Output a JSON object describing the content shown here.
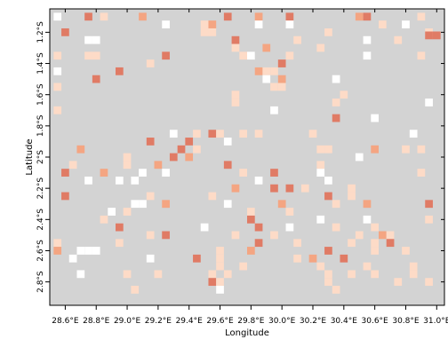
{
  "map": {
    "xlabel": "Longitude",
    "ylabel": "Latitude",
    "x_ticks": [
      "28.6°E",
      "28.8°E",
      "29.0°E",
      "29.2°E",
      "29.4°E",
      "29.6°E",
      "29.8°E",
      "30.0°E",
      "30.2°E",
      "30.4°E",
      "30.6°E",
      "30.8°E",
      "31.0°E"
    ],
    "y_ticks": [
      "1.2°S",
      "1.4°S",
      "1.6°S",
      "1.8°S",
      "2°S",
      "2.2°S",
      "2.4°S",
      "2.6°S",
      "2.8°S"
    ],
    "x_tick_values": [
      28.6,
      28.8,
      29.0,
      29.2,
      29.4,
      29.6,
      29.8,
      30.0,
      30.2,
      30.4,
      30.6,
      30.8,
      31.0
    ],
    "y_tick_values": [
      1.2,
      1.4,
      1.6,
      1.8,
      2.0,
      2.2,
      2.4,
      2.6,
      2.8
    ],
    "colors": {
      "background": "#d3d3d3",
      "no_data": "#ffffff",
      "low": "#fddbc7",
      "mid": "#f4a582",
      "high": "#e07b65"
    }
  },
  "chart_data": {
    "type": "heatmap",
    "xlabel": "Longitude",
    "ylabel": "Latitude",
    "xlim": [
      28.5,
      31.05
    ],
    "ylim": [
      1.05,
      2.95
    ],
    "y_direction": "south-increasing-downward",
    "cell_size_deg": 0.05,
    "cells": [
      {
        "lon": 28.75,
        "lat": 1.1,
        "class": "high"
      },
      {
        "lon": 28.55,
        "lat": 1.1,
        "class": "no_data"
      },
      {
        "lon": 28.85,
        "lat": 1.1,
        "class": "low"
      },
      {
        "lon": 29.1,
        "lat": 1.1,
        "class": "mid"
      },
      {
        "lon": 29.65,
        "lat": 1.1,
        "class": "high"
      },
      {
        "lon": 29.85,
        "lat": 1.1,
        "class": "mid"
      },
      {
        "lon": 30.05,
        "lat": 1.1,
        "class": "high"
      },
      {
        "lon": 30.5,
        "lat": 1.1,
        "class": "mid"
      },
      {
        "lon": 30.55,
        "lat": 1.1,
        "class": "high"
      },
      {
        "lon": 30.9,
        "lat": 1.1,
        "class": "low"
      },
      {
        "lon": 29.25,
        "lat": 1.15,
        "class": "no_data"
      },
      {
        "lon": 29.5,
        "lat": 1.15,
        "class": "low"
      },
      {
        "lon": 29.55,
        "lat": 1.15,
        "class": "mid"
      },
      {
        "lon": 29.85,
        "lat": 1.15,
        "class": "no_data"
      },
      {
        "lon": 30.05,
        "lat": 1.15,
        "class": "no_data"
      },
      {
        "lon": 30.65,
        "lat": 1.15,
        "class": "low"
      },
      {
        "lon": 30.8,
        "lat": 1.15,
        "class": "no_data"
      },
      {
        "lon": 28.6,
        "lat": 1.2,
        "class": "high"
      },
      {
        "lon": 29.5,
        "lat": 1.2,
        "class": "low"
      },
      {
        "lon": 29.55,
        "lat": 1.2,
        "class": "low"
      },
      {
        "lon": 30.3,
        "lat": 1.2,
        "class": "low"
      },
      {
        "lon": 30.95,
        "lat": 1.2,
        "class": "low"
      },
      {
        "lon": 30.95,
        "lat": 1.22,
        "class": "high"
      },
      {
        "lon": 31.0,
        "lat": 1.22,
        "class": "high"
      },
      {
        "lon": 28.75,
        "lat": 1.25,
        "class": "no_data"
      },
      {
        "lon": 28.8,
        "lat": 1.25,
        "class": "no_data"
      },
      {
        "lon": 29.7,
        "lat": 1.25,
        "class": "high"
      },
      {
        "lon": 30.1,
        "lat": 1.25,
        "class": "low"
      },
      {
        "lon": 30.55,
        "lat": 1.25,
        "class": "no_data"
      },
      {
        "lon": 30.75,
        "lat": 1.25,
        "class": "low"
      },
      {
        "lon": 29.7,
        "lat": 1.3,
        "class": "low"
      },
      {
        "lon": 29.9,
        "lat": 1.3,
        "class": "mid"
      },
      {
        "lon": 30.25,
        "lat": 1.3,
        "class": "low"
      },
      {
        "lon": 28.55,
        "lat": 1.35,
        "class": "low"
      },
      {
        "lon": 28.75,
        "lat": 1.35,
        "class": "low"
      },
      {
        "lon": 28.8,
        "lat": 1.35,
        "class": "low"
      },
      {
        "lon": 29.25,
        "lat": 1.35,
        "class": "high"
      },
      {
        "lon": 29.75,
        "lat": 1.35,
        "class": "low"
      },
      {
        "lon": 29.8,
        "lat": 1.35,
        "class": "no_data"
      },
      {
        "lon": 30.05,
        "lat": 1.35,
        "class": "low"
      },
      {
        "lon": 30.55,
        "lat": 1.35,
        "class": "no_data"
      },
      {
        "lon": 30.9,
        "lat": 1.35,
        "class": "low"
      },
      {
        "lon": 29.15,
        "lat": 1.4,
        "class": "low"
      },
      {
        "lon": 30.0,
        "lat": 1.4,
        "class": "high"
      },
      {
        "lon": 28.95,
        "lat": 1.45,
        "class": "high"
      },
      {
        "lon": 29.85,
        "lat": 1.45,
        "class": "mid"
      },
      {
        "lon": 29.9,
        "lat": 1.45,
        "class": "low"
      },
      {
        "lon": 29.95,
        "lat": 1.45,
        "class": "low"
      },
      {
        "lon": 28.55,
        "lat": 1.45,
        "class": "no_data"
      },
      {
        "lon": 28.8,
        "lat": 1.5,
        "class": "high"
      },
      {
        "lon": 29.9,
        "lat": 1.5,
        "class": "no_data"
      },
      {
        "lon": 30.0,
        "lat": 1.5,
        "class": "mid"
      },
      {
        "lon": 30.35,
        "lat": 1.5,
        "class": "no_data"
      },
      {
        "lon": 28.55,
        "lat": 1.55,
        "class": "low"
      },
      {
        "lon": 29.95,
        "lat": 1.55,
        "class": "low"
      },
      {
        "lon": 30.0,
        "lat": 1.55,
        "class": "low"
      },
      {
        "lon": 29.7,
        "lat": 1.6,
        "class": "low"
      },
      {
        "lon": 30.4,
        "lat": 1.6,
        "class": "low"
      },
      {
        "lon": 29.7,
        "lat": 1.65,
        "class": "low"
      },
      {
        "lon": 30.35,
        "lat": 1.65,
        "class": "low"
      },
      {
        "lon": 30.95,
        "lat": 1.65,
        "class": "no_data"
      },
      {
        "lon": 28.55,
        "lat": 1.7,
        "class": "low"
      },
      {
        "lon": 29.95,
        "lat": 1.7,
        "class": "no_data"
      },
      {
        "lon": 30.35,
        "lat": 1.75,
        "class": "high"
      },
      {
        "lon": 30.6,
        "lat": 1.75,
        "class": "no_data"
      },
      {
        "lon": 29.3,
        "lat": 1.85,
        "class": "no_data"
      },
      {
        "lon": 29.45,
        "lat": 1.85,
        "class": "low"
      },
      {
        "lon": 29.55,
        "lat": 1.85,
        "class": "high"
      },
      {
        "lon": 29.6,
        "lat": 1.85,
        "class": "low"
      },
      {
        "lon": 29.75,
        "lat": 1.85,
        "class": "low"
      },
      {
        "lon": 29.85,
        "lat": 1.85,
        "class": "low"
      },
      {
        "lon": 30.2,
        "lat": 1.85,
        "class": "low"
      },
      {
        "lon": 30.85,
        "lat": 1.85,
        "class": "no_data"
      },
      {
        "lon": 29.15,
        "lat": 1.9,
        "class": "high"
      },
      {
        "lon": 29.4,
        "lat": 1.9,
        "class": "high"
      },
      {
        "lon": 29.65,
        "lat": 1.9,
        "class": "no_data"
      },
      {
        "lon": 28.7,
        "lat": 1.95,
        "class": "mid"
      },
      {
        "lon": 29.35,
        "lat": 1.95,
        "class": "high"
      },
      {
        "lon": 29.45,
        "lat": 1.95,
        "class": "low"
      },
      {
        "lon": 30.25,
        "lat": 1.95,
        "class": "low"
      },
      {
        "lon": 30.3,
        "lat": 1.95,
        "class": "low"
      },
      {
        "lon": 30.6,
        "lat": 1.95,
        "class": "mid"
      },
      {
        "lon": 30.9,
        "lat": 1.95,
        "class": "low"
      },
      {
        "lon": 30.8,
        "lat": 1.95,
        "class": "low"
      },
      {
        "lon": 29.0,
        "lat": 2.0,
        "class": "low"
      },
      {
        "lon": 29.3,
        "lat": 2.0,
        "class": "high"
      },
      {
        "lon": 29.4,
        "lat": 2.0,
        "class": "mid"
      },
      {
        "lon": 30.5,
        "lat": 2.0,
        "class": "no_data"
      },
      {
        "lon": 28.65,
        "lat": 2.05,
        "class": "low"
      },
      {
        "lon": 29.0,
        "lat": 2.05,
        "class": "low"
      },
      {
        "lon": 29.2,
        "lat": 2.05,
        "class": "mid"
      },
      {
        "lon": 29.65,
        "lat": 2.05,
        "class": "high"
      },
      {
        "lon": 30.25,
        "lat": 2.05,
        "class": "low"
      },
      {
        "lon": 28.6,
        "lat": 2.1,
        "class": "high"
      },
      {
        "lon": 28.85,
        "lat": 2.1,
        "class": "mid"
      },
      {
        "lon": 29.1,
        "lat": 2.1,
        "class": "no_data"
      },
      {
        "lon": 29.25,
        "lat": 2.1,
        "class": "no_data"
      },
      {
        "lon": 29.75,
        "lat": 2.1,
        "class": "low"
      },
      {
        "lon": 29.95,
        "lat": 2.1,
        "class": "high"
      },
      {
        "lon": 30.25,
        "lat": 2.1,
        "class": "no_data"
      },
      {
        "lon": 30.9,
        "lat": 2.1,
        "class": "low"
      },
      {
        "lon": 28.75,
        "lat": 2.15,
        "class": "no_data"
      },
      {
        "lon": 28.95,
        "lat": 2.15,
        "class": "no_data"
      },
      {
        "lon": 29.05,
        "lat": 2.15,
        "class": "no_data"
      },
      {
        "lon": 29.85,
        "lat": 2.15,
        "class": "no_data"
      },
      {
        "lon": 30.3,
        "lat": 2.15,
        "class": "no_data"
      },
      {
        "lon": 29.7,
        "lat": 2.2,
        "class": "mid"
      },
      {
        "lon": 29.95,
        "lat": 2.2,
        "class": "high"
      },
      {
        "lon": 30.05,
        "lat": 2.2,
        "class": "high"
      },
      {
        "lon": 30.15,
        "lat": 2.2,
        "class": "low"
      },
      {
        "lon": 30.45,
        "lat": 2.2,
        "class": "low"
      },
      {
        "lon": 28.6,
        "lat": 2.25,
        "class": "high"
      },
      {
        "lon": 29.15,
        "lat": 2.25,
        "class": "low"
      },
      {
        "lon": 29.55,
        "lat": 2.25,
        "class": "low"
      },
      {
        "lon": 30.3,
        "lat": 2.25,
        "class": "high"
      },
      {
        "lon": 30.45,
        "lat": 2.25,
        "class": "low"
      },
      {
        "lon": 29.05,
        "lat": 2.3,
        "class": "no_data"
      },
      {
        "lon": 29.1,
        "lat": 2.3,
        "class": "no_data"
      },
      {
        "lon": 29.25,
        "lat": 2.3,
        "class": "mid"
      },
      {
        "lon": 29.65,
        "lat": 2.3,
        "class": "no_data"
      },
      {
        "lon": 30.0,
        "lat": 2.3,
        "class": "mid"
      },
      {
        "lon": 30.35,
        "lat": 2.3,
        "class": "low"
      },
      {
        "lon": 30.55,
        "lat": 2.3,
        "class": "mid"
      },
      {
        "lon": 30.95,
        "lat": 2.3,
        "class": "high"
      },
      {
        "lon": 28.9,
        "lat": 2.35,
        "class": "no_data"
      },
      {
        "lon": 29.0,
        "lat": 2.35,
        "class": "low"
      },
      {
        "lon": 29.8,
        "lat": 2.35,
        "class": "low"
      },
      {
        "lon": 30.05,
        "lat": 2.35,
        "class": "low"
      },
      {
        "lon": 28.85,
        "lat": 2.4,
        "class": "low"
      },
      {
        "lon": 29.8,
        "lat": 2.4,
        "class": "high"
      },
      {
        "lon": 30.25,
        "lat": 2.4,
        "class": "no_data"
      },
      {
        "lon": 30.55,
        "lat": 2.4,
        "class": "no_data"
      },
      {
        "lon": 30.95,
        "lat": 2.4,
        "class": "low"
      },
      {
        "lon": 28.95,
        "lat": 2.45,
        "class": "high"
      },
      {
        "lon": 29.5,
        "lat": 2.45,
        "class": "no_data"
      },
      {
        "lon": 29.85,
        "lat": 2.45,
        "class": "high"
      },
      {
        "lon": 30.05,
        "lat": 2.45,
        "class": "no_data"
      },
      {
        "lon": 30.35,
        "lat": 2.45,
        "class": "low"
      },
      {
        "lon": 30.6,
        "lat": 2.45,
        "class": "low"
      },
      {
        "lon": 29.15,
        "lat": 2.5,
        "class": "low"
      },
      {
        "lon": 29.25,
        "lat": 2.5,
        "class": "high"
      },
      {
        "lon": 29.7,
        "lat": 2.5,
        "class": "low"
      },
      {
        "lon": 29.95,
        "lat": 2.5,
        "class": "low"
      },
      {
        "lon": 30.5,
        "lat": 2.5,
        "class": "low"
      },
      {
        "lon": 30.65,
        "lat": 2.5,
        "class": "mid"
      },
      {
        "lon": 30.7,
        "lat": 2.5,
        "class": "low"
      },
      {
        "lon": 28.55,
        "lat": 2.55,
        "class": "low"
      },
      {
        "lon": 28.95,
        "lat": 2.55,
        "class": "low"
      },
      {
        "lon": 29.85,
        "lat": 2.55,
        "class": "high"
      },
      {
        "lon": 30.1,
        "lat": 2.55,
        "class": "low"
      },
      {
        "lon": 30.45,
        "lat": 2.55,
        "class": "low"
      },
      {
        "lon": 30.6,
        "lat": 2.55,
        "class": "low"
      },
      {
        "lon": 30.7,
        "lat": 2.55,
        "class": "high"
      },
      {
        "lon": 28.55,
        "lat": 2.6,
        "class": "mid"
      },
      {
        "lon": 28.7,
        "lat": 2.6,
        "class": "no_data"
      },
      {
        "lon": 28.75,
        "lat": 2.6,
        "class": "no_data"
      },
      {
        "lon": 28.8,
        "lat": 2.6,
        "class": "no_data"
      },
      {
        "lon": 29.6,
        "lat": 2.6,
        "class": "low"
      },
      {
        "lon": 29.8,
        "lat": 2.6,
        "class": "mid"
      },
      {
        "lon": 30.3,
        "lat": 2.6,
        "class": "high"
      },
      {
        "lon": 30.6,
        "lat": 2.6,
        "class": "low"
      },
      {
        "lon": 30.8,
        "lat": 2.6,
        "class": "low"
      },
      {
        "lon": 28.65,
        "lat": 2.65,
        "class": "no_data"
      },
      {
        "lon": 29.15,
        "lat": 2.65,
        "class": "no_data"
      },
      {
        "lon": 29.45,
        "lat": 2.65,
        "class": "high"
      },
      {
        "lon": 29.6,
        "lat": 2.65,
        "class": "low"
      },
      {
        "lon": 30.1,
        "lat": 2.65,
        "class": "low"
      },
      {
        "lon": 30.2,
        "lat": 2.65,
        "class": "mid"
      },
      {
        "lon": 30.4,
        "lat": 2.65,
        "class": "high"
      },
      {
        "lon": 29.6,
        "lat": 2.7,
        "class": "low"
      },
      {
        "lon": 29.75,
        "lat": 2.7,
        "class": "low"
      },
      {
        "lon": 30.25,
        "lat": 2.7,
        "class": "low"
      },
      {
        "lon": 30.55,
        "lat": 2.7,
        "class": "low"
      },
      {
        "lon": 30.85,
        "lat": 2.7,
        "class": "low"
      },
      {
        "lon": 28.7,
        "lat": 2.75,
        "class": "no_data"
      },
      {
        "lon": 29.0,
        "lat": 2.75,
        "class": "low"
      },
      {
        "lon": 29.2,
        "lat": 2.75,
        "class": "low"
      },
      {
        "lon": 29.55,
        "lat": 2.75,
        "class": "low"
      },
      {
        "lon": 29.65,
        "lat": 2.75,
        "class": "low"
      },
      {
        "lon": 30.3,
        "lat": 2.75,
        "class": "low"
      },
      {
        "lon": 30.45,
        "lat": 2.75,
        "class": "low"
      },
      {
        "lon": 30.6,
        "lat": 2.75,
        "class": "low"
      },
      {
        "lon": 30.85,
        "lat": 2.75,
        "class": "low"
      },
      {
        "lon": 29.55,
        "lat": 2.8,
        "class": "high"
      },
      {
        "lon": 29.6,
        "lat": 2.8,
        "class": "low"
      },
      {
        "lon": 30.3,
        "lat": 2.8,
        "class": "low"
      },
      {
        "lon": 30.75,
        "lat": 2.8,
        "class": "low"
      },
      {
        "lon": 30.95,
        "lat": 2.8,
        "class": "low"
      },
      {
        "lon": 29.05,
        "lat": 2.85,
        "class": "low"
      },
      {
        "lon": 29.6,
        "lat": 2.85,
        "class": "no_data"
      },
      {
        "lon": 30.35,
        "lat": 2.85,
        "class": "low"
      }
    ]
  }
}
